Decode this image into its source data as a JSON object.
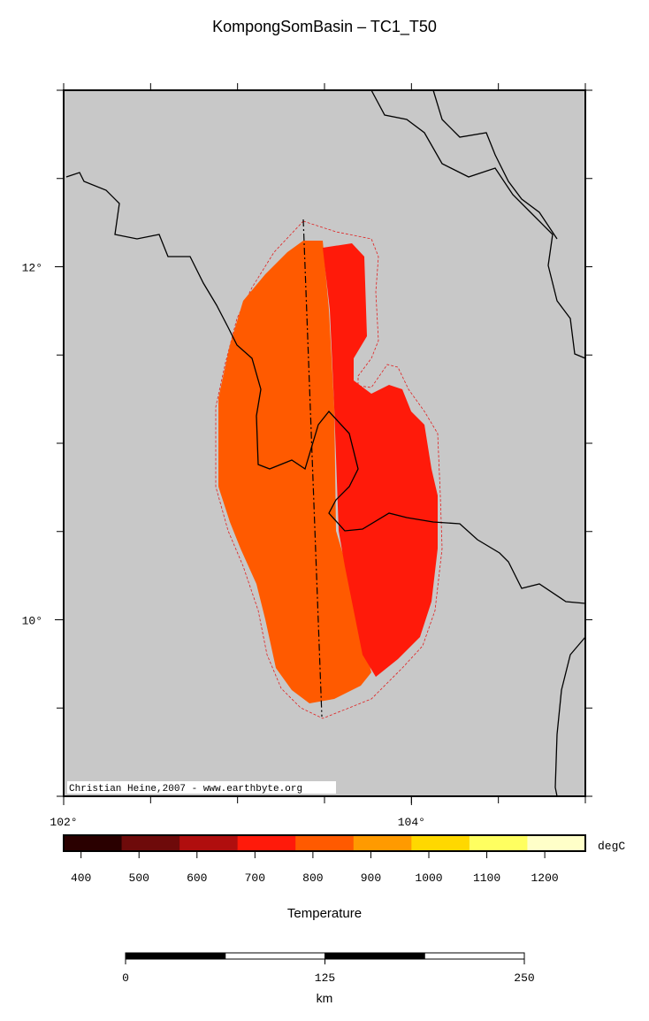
{
  "map": {
    "title": "KompongSomBasin – TC1_T50",
    "lon_range": [
      102,
      105
    ],
    "lat_range": [
      9,
      13
    ],
    "lon_ticks": [
      {
        "value": 102,
        "label": "102°"
      },
      {
        "value": 104,
        "label": "104°"
      }
    ],
    "lat_ticks": [
      {
        "value": 12,
        "label": "12°"
      },
      {
        "value": 10,
        "label": "10°"
      }
    ],
    "credit": "Christian Heine,2007 - www.earthbyte.org"
  },
  "colorbar": {
    "title": "Temperature",
    "unit": "degC",
    "range": [
      370,
      1270
    ],
    "colors": [
      "#2a0000",
      "#6e0a0a",
      "#b00e0e",
      "#ff1a0a",
      "#ff5a00",
      "#ff9a00",
      "#ffd800",
      "#ffff60",
      "#ffffc8"
    ],
    "ticks": [
      400,
      500,
      600,
      700,
      800,
      900,
      1000,
      1100,
      1200
    ]
  },
  "scalebar": {
    "range": [
      0,
      250
    ],
    "ticks": [
      0,
      125,
      250
    ],
    "unit": "km"
  }
}
